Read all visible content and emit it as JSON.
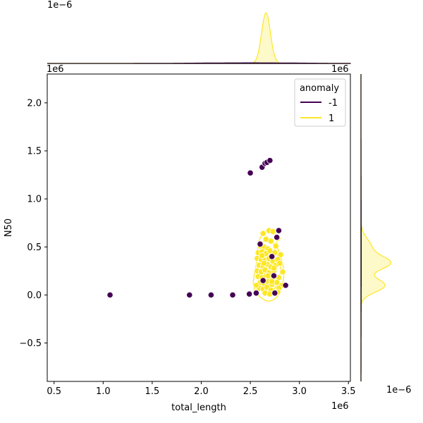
{
  "chart_data": {
    "type": "scatter",
    "subtype": "joint-plot-with-kde",
    "xlabel": "total_length",
    "ylabel": "N50",
    "x_offset_text": "1e6",
    "y_offset_text": "1e6",
    "top_marginal_offset_text": "1e−6",
    "right_marginal_offset_text": "1e−6",
    "xlim": [
      0.43,
      3.52
    ],
    "ylim": [
      -0.9,
      2.3
    ],
    "xticks": [
      0.5,
      1.0,
      1.5,
      2.0,
      2.5,
      3.0,
      3.5
    ],
    "xtick_labels": [
      "0.5",
      "1.0",
      "1.5",
      "2.0",
      "2.5",
      "3.0",
      "3.5"
    ],
    "yticks": [
      -0.5,
      0.0,
      0.5,
      1.0,
      1.5,
      2.0
    ],
    "ytick_labels": [
      "−0.5",
      "0.0",
      "0.5",
      "1.0",
      "1.5",
      "2.0"
    ],
    "grid": false,
    "legend": {
      "title": "anomaly",
      "position": "top-right",
      "entries": [
        {
          "label": "-1",
          "color": "#440154"
        },
        {
          "label": "1",
          "color": "#fde725"
        }
      ]
    },
    "series": [
      {
        "name": "-1",
        "color": "#440154",
        "points": [
          [
            1.07,
            0.0
          ],
          [
            1.88,
            0.0
          ],
          [
            2.1,
            0.0
          ],
          [
            2.32,
            0.0
          ],
          [
            2.49,
            0.01
          ],
          [
            2.56,
            0.02
          ],
          [
            2.5,
            1.27
          ],
          [
            2.62,
            1.33
          ],
          [
            2.65,
            1.37
          ],
          [
            2.67,
            1.38
          ],
          [
            2.7,
            1.4
          ],
          [
            2.6,
            0.53
          ],
          [
            2.72,
            0.4
          ],
          [
            2.74,
            0.2
          ],
          [
            2.77,
            0.6
          ],
          [
            2.79,
            0.67
          ],
          [
            2.86,
            0.1
          ],
          [
            2.63,
            0.15
          ],
          [
            2.75,
            0.02
          ]
        ]
      },
      {
        "name": "1",
        "color": "#fde725",
        "points": [
          [
            2.63,
            0.64
          ],
          [
            2.69,
            0.67
          ],
          [
            2.73,
            0.66
          ],
          [
            2.66,
            0.58
          ],
          [
            2.71,
            0.56
          ],
          [
            2.78,
            0.59
          ],
          [
            2.6,
            0.51
          ],
          [
            2.64,
            0.5
          ],
          [
            2.68,
            0.48
          ],
          [
            2.76,
            0.51
          ],
          [
            2.58,
            0.44
          ],
          [
            2.62,
            0.45
          ],
          [
            2.66,
            0.43
          ],
          [
            2.7,
            0.46
          ],
          [
            2.75,
            0.44
          ],
          [
            2.81,
            0.42
          ],
          [
            2.57,
            0.38
          ],
          [
            2.61,
            0.37
          ],
          [
            2.65,
            0.36
          ],
          [
            2.69,
            0.38
          ],
          [
            2.73,
            0.35
          ],
          [
            2.78,
            0.37
          ],
          [
            2.59,
            0.31
          ],
          [
            2.63,
            0.3
          ],
          [
            2.67,
            0.32
          ],
          [
            2.71,
            0.29
          ],
          [
            2.76,
            0.31
          ],
          [
            2.8,
            0.33
          ],
          [
            2.57,
            0.25
          ],
          [
            2.61,
            0.24
          ],
          [
            2.65,
            0.26
          ],
          [
            2.69,
            0.23
          ],
          [
            2.74,
            0.25
          ],
          [
            2.83,
            0.24
          ],
          [
            2.58,
            0.19
          ],
          [
            2.62,
            0.18
          ],
          [
            2.66,
            0.2
          ],
          [
            2.7,
            0.17
          ],
          [
            2.75,
            0.19
          ],
          [
            2.79,
            0.18
          ],
          [
            2.6,
            0.13
          ],
          [
            2.64,
            0.12
          ],
          [
            2.68,
            0.14
          ],
          [
            2.72,
            0.11
          ],
          [
            2.77,
            0.13
          ],
          [
            2.82,
            0.1
          ],
          [
            2.59,
            0.07
          ],
          [
            2.63,
            0.06
          ],
          [
            2.67,
            0.08
          ],
          [
            2.71,
            0.05
          ],
          [
            2.79,
            0.07
          ],
          [
            2.65,
            0.02
          ],
          [
            2.7,
            0.01
          ],
          [
            2.78,
            0.03
          ],
          [
            2.56,
            0.1
          ],
          [
            2.74,
            0.28
          ],
          [
            2.62,
            0.41
          ],
          [
            2.68,
            0.2
          ],
          [
            2.72,
            0.14
          ],
          [
            2.64,
            0.33
          ]
        ]
      }
    ],
    "marginal_x": {
      "series": [
        {
          "name": "1",
          "color": "#fde725",
          "peaks": [
            {
              "center": 2.66,
              "width": 0.045,
              "height": 1.0
            }
          ]
        },
        {
          "name": "-1",
          "color": "#440154",
          "peaks": [
            {
              "center": 2.5,
              "width": 0.5,
              "height": 0.012
            }
          ]
        }
      ]
    },
    "marginal_y": {
      "series": [
        {
          "name": "1",
          "color": "#fde725",
          "peaks": [
            {
              "center": 0.1,
              "width": 0.07,
              "height": 0.85
            },
            {
              "center": 0.33,
              "width": 0.07,
              "height": 1.0
            },
            {
              "center": 0.5,
              "width": 0.09,
              "height": 0.35
            }
          ]
        },
        {
          "name": "-1",
          "color": "#440154",
          "peaks": [
            {
              "center": 0.4,
              "width": 0.6,
              "height": 0.01
            }
          ]
        }
      ]
    }
  }
}
